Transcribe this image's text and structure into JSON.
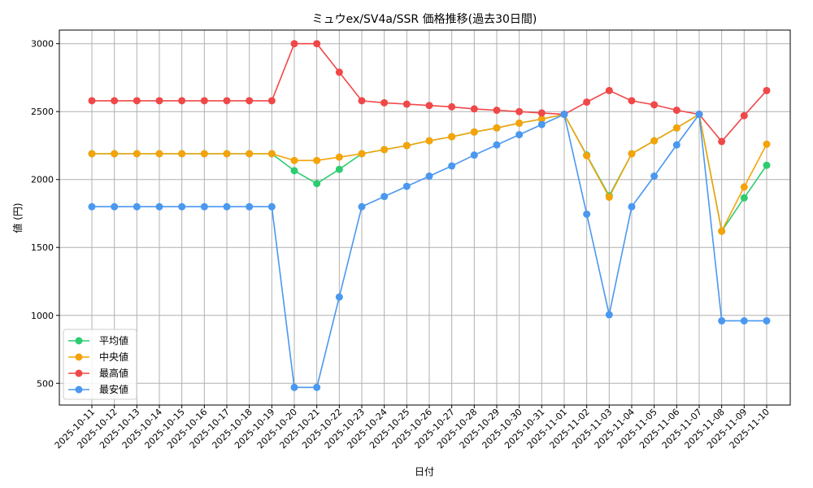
{
  "chart_data": {
    "type": "line",
    "title": "ミュウex/SV4a/SSR 価格推移(過去30日間)",
    "xlabel": "日付",
    "ylabel": "値 (円)",
    "ylim": [
      340,
      3100
    ],
    "yticks": [
      500,
      1000,
      1500,
      2000,
      2500,
      3000
    ],
    "grid": true,
    "legend_position": "lower-left",
    "categories": [
      "2025-10-11",
      "2025-10-12",
      "2025-10-13",
      "2025-10-14",
      "2025-10-15",
      "2025-10-16",
      "2025-10-17",
      "2025-10-18",
      "2025-10-19",
      "2025-10-20",
      "2025-10-21",
      "2025-10-22",
      "2025-10-23",
      "2025-10-24",
      "2025-10-25",
      "2025-10-26",
      "2025-10-27",
      "2025-10-28",
      "2025-10-29",
      "2025-10-30",
      "2025-10-31",
      "2025-11-01",
      "2025-11-02",
      "2025-11-03",
      "2025-11-04",
      "2025-11-05",
      "2025-11-06",
      "2025-11-07",
      "2025-11-08",
      "2025-11-09",
      "2025-11-10"
    ],
    "series": [
      {
        "name": "平均値",
        "color": "#2ecc71",
        "values": [
          2190,
          2190,
          2190,
          2190,
          2190,
          2190,
          2190,
          2190,
          2190,
          2065,
          1970,
          2075,
          2190,
          2220,
          2250,
          2285,
          2315,
          2350,
          2380,
          2415,
          2445,
          2480,
          2180,
          1880,
          2190,
          2285,
          2380,
          2480,
          1620,
          1865,
          2105
        ]
      },
      {
        "name": "中央値",
        "color": "#f5a30a",
        "values": [
          2190,
          2190,
          2190,
          2190,
          2190,
          2190,
          2190,
          2190,
          2190,
          2140,
          2140,
          2165,
          2190,
          2220,
          2250,
          2285,
          2315,
          2350,
          2380,
          2415,
          2445,
          2480,
          2175,
          1870,
          2190,
          2285,
          2380,
          2480,
          1620,
          1945,
          2260
        ]
      },
      {
        "name": "最高値",
        "color": "#f04848",
        "values": [
          2580,
          2580,
          2580,
          2580,
          2580,
          2580,
          2580,
          2580,
          2580,
          3000,
          3000,
          2790,
          2580,
          2565,
          2555,
          2545,
          2535,
          2520,
          2510,
          2500,
          2490,
          2480,
          2570,
          2655,
          2580,
          2550,
          2510,
          2480,
          2280,
          2470,
          2655
        ]
      },
      {
        "name": "最安値",
        "color": "#4a98f0",
        "values": [
          1800,
          1800,
          1800,
          1800,
          1800,
          1800,
          1800,
          1800,
          1800,
          470,
          470,
          1135,
          1800,
          1875,
          1950,
          2025,
          2100,
          2180,
          2255,
          2330,
          2405,
          2480,
          1745,
          1005,
          1800,
          2025,
          2255,
          2480,
          960,
          960,
          960
        ]
      }
    ]
  }
}
